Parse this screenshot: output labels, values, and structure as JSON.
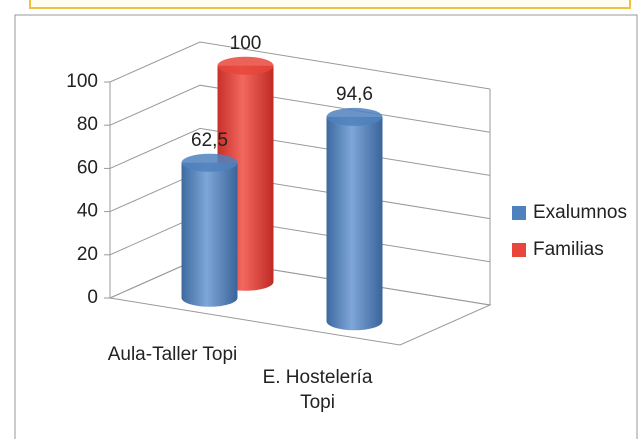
{
  "chart_data": {
    "type": "bar3d",
    "categories": [
      "Aula-Taller Topi",
      "E. Hostelería Topi"
    ],
    "series": [
      {
        "name": "Exalumnos",
        "color": "#4f81bd",
        "values": [
          62.5,
          94.6
        ],
        "value_labels": [
          "62,5",
          "94,6"
        ]
      },
      {
        "name": "Familias",
        "color": "#e8463c",
        "values": [
          100,
          null
        ],
        "value_labels": [
          "100",
          null
        ]
      }
    ],
    "ylim": [
      0,
      100
    ],
    "yticks": [
      0,
      20,
      40,
      60,
      80,
      100
    ],
    "grid": true,
    "legend": "right"
  }
}
